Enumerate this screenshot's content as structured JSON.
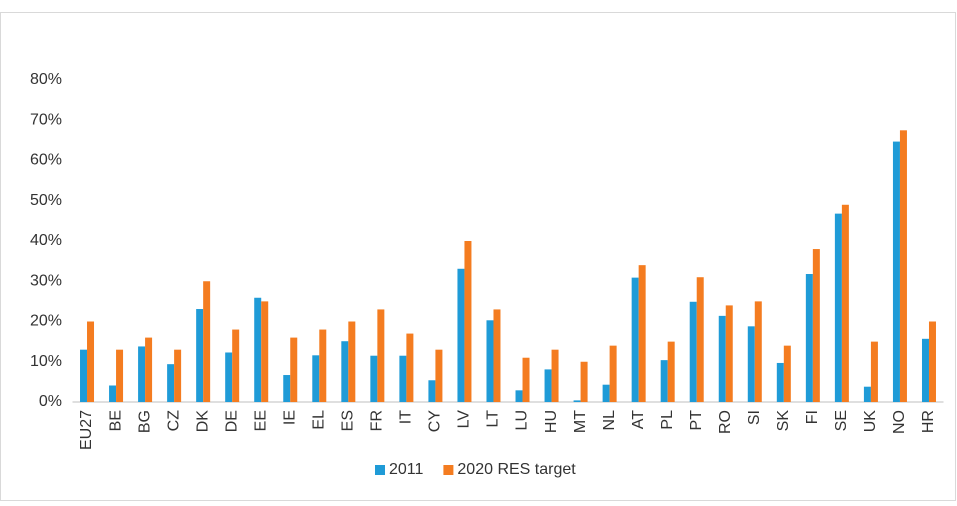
{
  "chart_data": {
    "type": "bar",
    "categories": [
      "EU27",
      "BE",
      "BG",
      "CZ",
      "DK",
      "DE",
      "EE",
      "IE",
      "EL",
      "ES",
      "FR",
      "IT",
      "CY",
      "LV",
      "LT",
      "LU",
      "HU",
      "MT",
      "NL",
      "AT",
      "PL",
      "PT",
      "RO",
      "SI",
      "SK",
      "FI",
      "SE",
      "UK",
      "NO",
      "HR"
    ],
    "series": [
      {
        "name": "2011",
        "color": "#1f9bd7",
        "values": [
          13,
          4.1,
          13.8,
          9.4,
          23.1,
          12.3,
          25.9,
          6.7,
          11.6,
          15.1,
          11.5,
          11.5,
          5.4,
          33.1,
          20.3,
          2.9,
          8.1,
          0.4,
          4.3,
          30.9,
          10.4,
          24.9,
          21.4,
          18.8,
          9.7,
          31.8,
          46.8,
          3.8,
          64.7,
          15.7
        ]
      },
      {
        "name": "2020 RES target",
        "color": "#f47c20",
        "values": [
          20,
          13,
          16,
          13,
          30,
          18,
          25,
          16,
          18,
          20,
          23,
          17,
          13,
          40,
          23,
          11,
          13,
          10,
          14,
          34,
          15,
          31,
          24,
          25,
          14,
          38,
          49,
          15,
          67.5,
          20
        ]
      }
    ],
    "ylim": [
      0,
      80
    ],
    "yticks": [
      {
        "value": 0,
        "label": "0%"
      },
      {
        "value": 10,
        "label": "10%"
      },
      {
        "value": 20,
        "label": "20%"
      },
      {
        "value": 30,
        "label": "30%"
      },
      {
        "value": 40,
        "label": "40%"
      },
      {
        "value": 50,
        "label": "50%"
      },
      {
        "value": 60,
        "label": "60%"
      },
      {
        "value": 70,
        "label": "70%"
      },
      {
        "value": 80,
        "label": "80%"
      }
    ],
    "grid": false,
    "legend": "bottom"
  }
}
